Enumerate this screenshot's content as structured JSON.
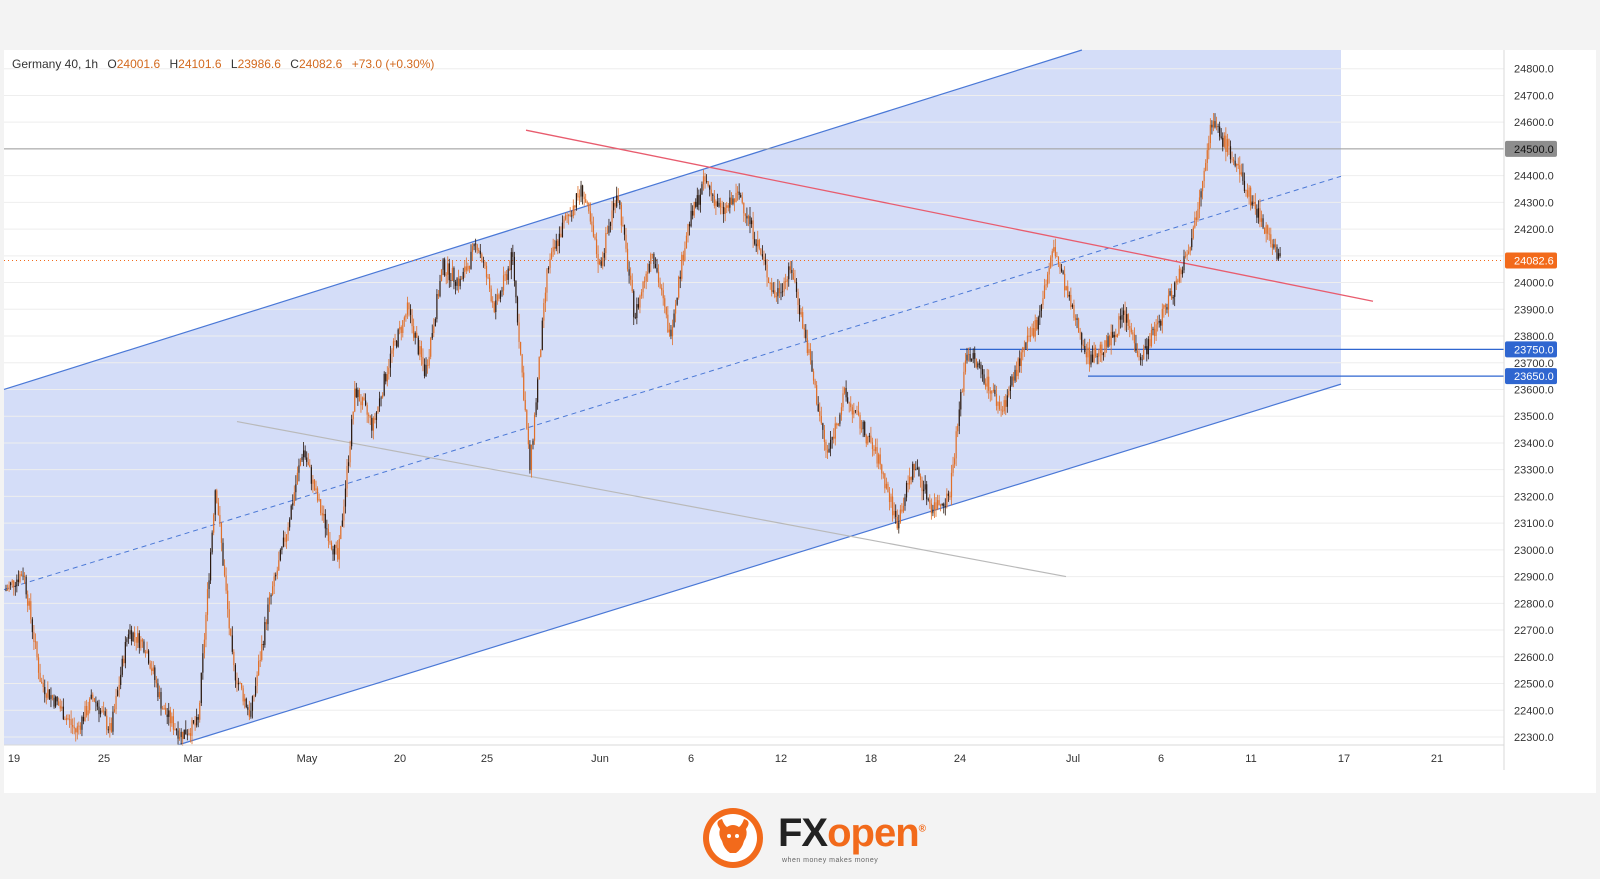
{
  "header": {
    "symbol": "Germany 40, 1h",
    "o_label": "O",
    "o_value": "24001.6",
    "h_label": "H",
    "h_value": "24101.6",
    "l_label": "L",
    "l_value": "23986.6",
    "c_label": "C",
    "c_value": "24082.6",
    "change": "+73.0 (+0.30%)"
  },
  "colors": {
    "candle": "#e0702a",
    "candle_dark": "#2b1a10",
    "channel_fill": "#cfd9f7",
    "channel_line": "#4a78d6",
    "resistance_line": "#e85c6e",
    "support_gray_line": "#b9b9b9",
    "price_line": "#f26a1b",
    "level_line": "#2f66d0",
    "gray_level": "#9a9a9a"
  },
  "chart_data": {
    "type": "candlestick",
    "ylim": [
      22270,
      24870
    ],
    "y_ticks": [
      24800,
      24700,
      24600,
      24500,
      24400,
      24300,
      24200,
      24100,
      24000,
      23900,
      23800,
      23700,
      23600,
      23500,
      23400,
      23300,
      23200,
      23100,
      23000,
      22900,
      22800,
      22700,
      22600,
      22500,
      22400,
      22300
    ],
    "x_ticks": [
      "19",
      "25",
      "Mar",
      "May",
      "20",
      "25",
      "Jun",
      "6",
      "12",
      "18",
      "24",
      "Jul",
      "6",
      "11",
      "17",
      "21"
    ],
    "price_labels": [
      {
        "value": 24500.0,
        "text": "24500.0",
        "style": "gray"
      },
      {
        "value": 24082.6,
        "text": "24082.6",
        "style": "current"
      },
      {
        "value": 23750.0,
        "text": "23750.0",
        "style": "level"
      },
      {
        "value": 23650.0,
        "text": "23650.0",
        "style": "level"
      }
    ],
    "close_path": [
      [
        "19",
        22850
      ],
      [
        "",
        22920
      ],
      [
        "",
        22500
      ],
      [
        "",
        22420
      ],
      [
        "",
        22320
      ],
      [
        "",
        22450
      ],
      [
        "25",
        22320
      ],
      [
        "",
        22700
      ],
      [
        "",
        22640
      ],
      [
        "",
        22400
      ],
      [
        "",
        22310
      ],
      [
        "Mar",
        22350
      ],
      [
        "",
        23250
      ],
      [
        "",
        22560
      ],
      [
        "",
        22380
      ],
      [
        "",
        22780
      ],
      [
        "",
        23050
      ],
      [
        "",
        23380
      ],
      [
        "",
        23150
      ],
      [
        "",
        22960
      ],
      [
        "May",
        23600
      ],
      [
        "",
        23460
      ],
      [
        "",
        23720
      ],
      [
        "",
        23900
      ],
      [
        "",
        23660
      ],
      [
        "20",
        24060
      ],
      [
        "",
        24000
      ],
      [
        "",
        24150
      ],
      [
        "",
        23900
      ],
      [
        "",
        24100
      ],
      [
        "",
        23300
      ],
      [
        "25",
        24050
      ],
      [
        "",
        24230
      ],
      [
        "",
        24350
      ],
      [
        "",
        24060
      ],
      [
        "",
        24350
      ],
      [
        "",
        23870
      ],
      [
        "",
        24130
      ],
      [
        "Jun",
        23800
      ],
      [
        "",
        24200
      ],
      [
        "",
        24380
      ],
      [
        "6",
        24260
      ],
      [
        "",
        24330
      ],
      [
        "",
        24150
      ],
      [
        "",
        23950
      ],
      [
        "",
        24050
      ],
      [
        "12",
        23720
      ],
      [
        "",
        23350
      ],
      [
        "",
        23580
      ],
      [
        "",
        23460
      ],
      [
        "",
        23330
      ],
      [
        "18",
        23100
      ],
      [
        "",
        23320
      ],
      [
        "",
        23160
      ],
      [
        "",
        23200
      ],
      [
        "24",
        23750
      ],
      [
        "",
        23650
      ],
      [
        "",
        23520
      ],
      [
        "",
        23700
      ],
      [
        "",
        23850
      ],
      [
        "",
        24130
      ],
      [
        "",
        23900
      ],
      [
        "Jul",
        23720
      ],
      [
        "",
        23760
      ],
      [
        "",
        23880
      ],
      [
        "",
        23720
      ],
      [
        "6",
        23850
      ],
      [
        "",
        24000
      ],
      [
        "",
        24200
      ],
      [
        "",
        24600
      ],
      [
        "11",
        24500
      ],
      [
        "",
        24350
      ],
      [
        "",
        24220
      ],
      [
        "",
        24080
      ]
    ],
    "annotations": [
      {
        "kind": "channel",
        "upper": [
          [
            "lb",
            23600
          ],
          [
            "Jun-6",
            24400
          ],
          [
            "top",
            24870
          ]
        ],
        "lower": [
          [
            "Mar",
            22300
          ],
          [
            "Jul-17",
            23620
          ]
        ],
        "mid": "dashed"
      },
      {
        "kind": "trendline",
        "name": "resistance",
        "from": 24570,
        "to": 23930
      },
      {
        "kind": "trendline",
        "name": "support-gray",
        "from": 23480,
        "to": 22900
      },
      {
        "kind": "hline",
        "value": 24500
      },
      {
        "kind": "hline",
        "value": 23750
      },
      {
        "kind": "hline",
        "value": 23650
      }
    ]
  },
  "logo": {
    "brand_fx": "FX",
    "brand_open": "open",
    "registered": "®",
    "tagline": "when money makes money"
  }
}
